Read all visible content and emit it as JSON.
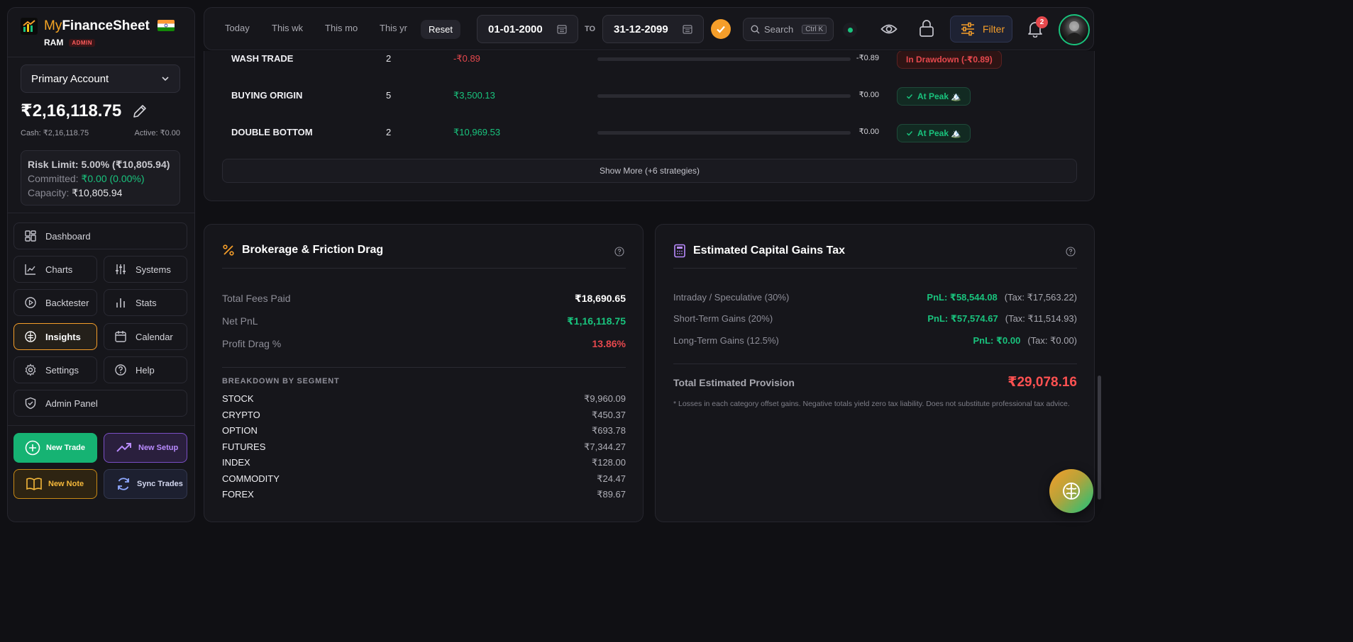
{
  "brand": {
    "my": "My",
    "name": "FinanceSheet",
    "user": "RAM",
    "role": "ADMIN"
  },
  "account": {
    "selected": "Primary Account",
    "balance": "₹2,16,118.75",
    "cash": "Cash: ₹2,16,118.75",
    "active": "Active: ₹0.00"
  },
  "risk": {
    "limit": "Risk Limit: 5.00% (₹10,805.94)",
    "committed_label": "Committed:",
    "committed_value": "₹0.00 (0.00%)",
    "capacity_label": "Capacity:",
    "capacity_value": "₹10,805.94"
  },
  "nav": {
    "dashboard": "Dashboard",
    "charts": "Charts",
    "systems": "Systems",
    "backtester": "Backtester",
    "stats": "Stats",
    "insights": "Insights",
    "calendar": "Calendar",
    "settings": "Settings",
    "help": "Help",
    "admin": "Admin Panel"
  },
  "actions": {
    "new_trade": "New Trade",
    "new_setup": "New Setup",
    "new_note": "New Note",
    "sync_trades": "Sync Trades"
  },
  "topbar": {
    "today": "Today",
    "week": "This wk",
    "month": "This mo",
    "year": "This yr",
    "reset": "Reset",
    "from": "01-01-2000",
    "to_label": "TO",
    "to": "31-12-2099",
    "search": "Search",
    "search_kbd": "Ctrl K",
    "filter": "Filter",
    "notifications": "2"
  },
  "strategies": {
    "rows": [
      {
        "name": "WASH TRADE",
        "count": "2",
        "pnl": "-₹0.89",
        "drawdown": "-₹0.89",
        "status": "In Drawdown (-₹0.89)"
      },
      {
        "name": "BUYING ORIGIN",
        "count": "5",
        "pnl": "₹3,500.13",
        "drawdown": "₹0.00",
        "status": "At Peak 🏔️"
      },
      {
        "name": "DOUBLE BOTTOM",
        "count": "2",
        "pnl": "₹10,969.53",
        "drawdown": "₹0.00",
        "status": "At Peak 🏔️"
      }
    ],
    "show_more": "Show More (+6 strategies)"
  },
  "brokerage": {
    "title": "Brokerage & Friction Drag",
    "fees_label": "Total Fees Paid",
    "fees_value": "₹18,690.65",
    "net_label": "Net PnL",
    "net_value": "₹1,16,118.75",
    "drag_label": "Profit Drag %",
    "drag_value": "13.86%",
    "segment_title": "BREAKDOWN BY SEGMENT",
    "segments": [
      {
        "name": "STOCK",
        "value": "₹9,960.09"
      },
      {
        "name": "CRYPTO",
        "value": "₹450.37"
      },
      {
        "name": "OPTION",
        "value": "₹693.78"
      },
      {
        "name": "FUTURES",
        "value": "₹7,344.27"
      },
      {
        "name": "INDEX",
        "value": "₹128.00"
      },
      {
        "name": "COMMODITY",
        "value": "₹24.47"
      },
      {
        "name": "FOREX",
        "value": "₹89.67"
      }
    ]
  },
  "tax": {
    "title": "Estimated Capital Gains Tax",
    "rows": [
      {
        "label": "Intraday / Speculative (30%)",
        "pnl": "PnL: ₹58,544.08",
        "tax": "(Tax: ₹17,563.22)"
      },
      {
        "label": "Short-Term Gains (20%)",
        "pnl": "PnL: ₹57,574.67",
        "tax": "(Tax: ₹11,514.93)"
      },
      {
        "label": "Long-Term Gains (12.5%)",
        "pnl": "PnL: ₹0.00",
        "tax": "(Tax: ₹0.00)"
      }
    ],
    "total_label": "Total Estimated Provision",
    "total_value": "₹29,078.16",
    "note": "* Losses in each category offset gains. Negative totals yield zero tax liability. Does not substitute professional tax advice."
  },
  "colors": {
    "accent": "#f59e2a",
    "positive": "#19c37d",
    "negative": "#e5484d",
    "background": "#101014"
  },
  "icons": [
    "chart-logo-icon",
    "india-flag-icon",
    "chevron-down-icon",
    "pencil-icon",
    "dashboard-icon",
    "line-chart-icon",
    "sliders-icon",
    "play-circle-icon",
    "bar-chart-icon",
    "brain-icon",
    "calendar-icon",
    "gear-icon",
    "help-circle-icon",
    "shield-icon",
    "plus-circle-icon",
    "trending-up-icon",
    "book-icon",
    "refresh-icon",
    "check-icon",
    "search-icon",
    "eye-icon",
    "lock-icon",
    "filter-icon",
    "bell-icon",
    "percent-icon",
    "calculator-icon"
  ]
}
